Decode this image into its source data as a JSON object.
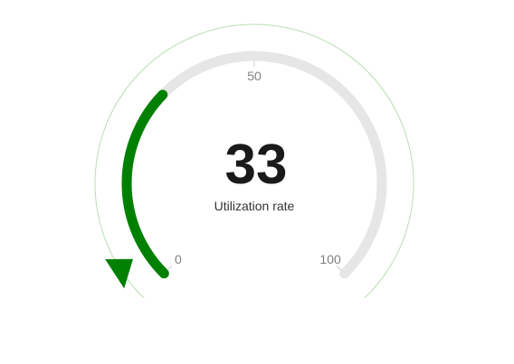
{
  "chart_data": {
    "type": "gauge",
    "value": 33,
    "min": 0,
    "max": 100,
    "label": "Utilization rate",
    "ticks": [
      {
        "value": 0,
        "label": "0"
      },
      {
        "value": 50,
        "label": "50"
      },
      {
        "value": 100,
        "label": "100"
      }
    ],
    "colors": {
      "progress": "#008000",
      "track": "#e6e6e6",
      "outer_ring": "#b7dfb0",
      "pointer": "#008000",
      "value_text": "#1a1a1a",
      "label_text": "#333333",
      "tick_text": "#808080"
    }
  }
}
